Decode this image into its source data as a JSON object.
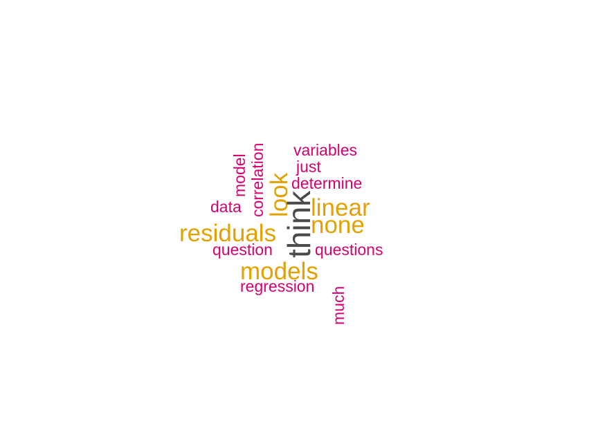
{
  "colors": {
    "pink": "#d6006f",
    "gold": "#e2a100",
    "gray": "#4a4a4a"
  },
  "words": {
    "think": "think",
    "residuals": "residuals",
    "models": "models",
    "linear": "linear",
    "none": "none",
    "look": "look",
    "variables": "variables",
    "just": "just",
    "determine": "determine",
    "model": "model",
    "correlation": "correlation",
    "data": "data",
    "question": "question",
    "questions": "questions",
    "regression": "regression",
    "much": "much"
  }
}
